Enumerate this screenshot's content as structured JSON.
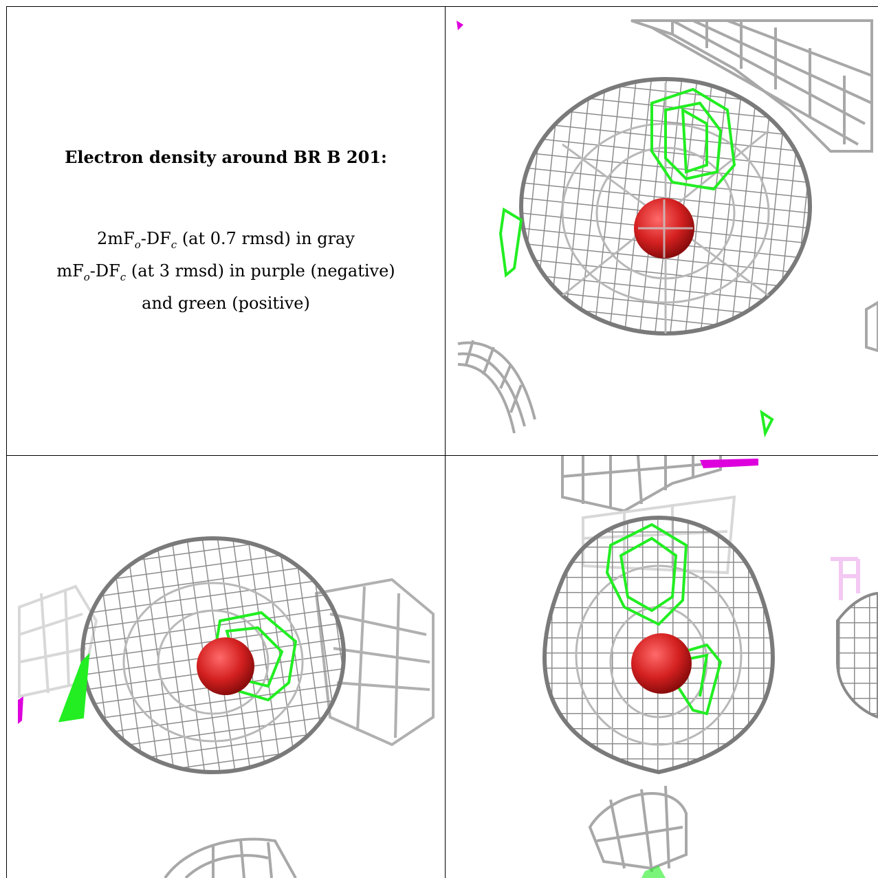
{
  "caption": {
    "title": "Electron density around BR B 201:",
    "line1_a": "2mF",
    "line1_sub1": "o",
    "line1_b": "-DF",
    "line1_sub2": "c",
    "line1_c": " (at 0.7 rmsd) in gray",
    "line2_a": "mF",
    "line2_sub1": "o",
    "line2_b": "-DF",
    "line2_sub2": "c",
    "line2_c": " (at 3 rmsd) in purple (negative)",
    "line3": "and green (positive)"
  },
  "colors": {
    "mesh_gray": "#9a9a9a",
    "mesh_dark": "#6e6e6e",
    "positive_green": "#22ee22",
    "negative_purple": "#dd00dd",
    "atom_red": "#d42020",
    "border": "#000000"
  },
  "panels": [
    "view-top-right",
    "view-bottom-left",
    "view-bottom-right"
  ]
}
